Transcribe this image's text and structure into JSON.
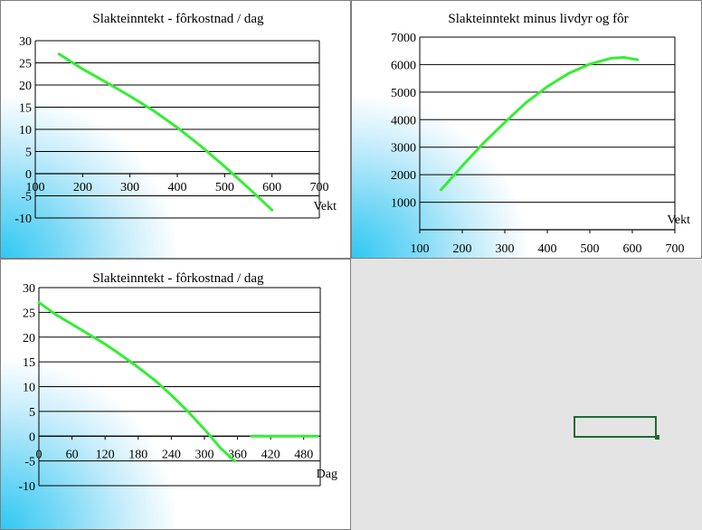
{
  "colors": {
    "line": "#33ee33",
    "axis": "#000000",
    "grid": "#000000",
    "background_gradient": "#2fc8f2",
    "sheet_background": "#e4e4e4",
    "selection": "#1e6b32"
  },
  "chart_data": [
    {
      "type": "line",
      "title": "Slakteinntekt - fôrkostnad / dag",
      "xlabel": "Vekt",
      "ylabel": "",
      "xlim": [
        100,
        700
      ],
      "ylim": [
        -10,
        30
      ],
      "xticks": [
        100,
        200,
        300,
        400,
        500,
        600,
        700
      ],
      "xtick_labels": [
        "100",
        "200",
        "300",
        "400",
        "500",
        "600",
        "700"
      ],
      "yticks": [
        -10,
        -5,
        0,
        5,
        10,
        15,
        20,
        25,
        30
      ],
      "ytick_labels": [
        "-10",
        "-5",
        "0",
        "5",
        "10",
        "15",
        "20",
        "25",
        "30"
      ],
      "grid": true,
      "legend": "none",
      "series": [
        {
          "x": [
            150,
            200,
            250,
            300,
            350,
            400,
            450,
            500,
            550,
            600
          ],
          "y": [
            27,
            23.6,
            20.6,
            17.5,
            14.2,
            10.4,
            6.2,
            1.6,
            -3.2,
            -8.2
          ]
        }
      ]
    },
    {
      "type": "line",
      "title": "Slakteinntekt minus livdyr og fôr",
      "xlabel": "Vekt",
      "ylabel": "",
      "xlim": [
        100,
        700
      ],
      "ylim": [
        0,
        7000
      ],
      "xticks": [
        100,
        200,
        300,
        400,
        500,
        600,
        700
      ],
      "xtick_labels": [
        "100",
        "200",
        "300",
        "400",
        "500",
        "600",
        "700"
      ],
      "yticks": [
        0,
        1000,
        2000,
        3000,
        4000,
        5000,
        6000,
        7000
      ],
      "ytick_labels": [
        "0",
        "1000",
        "2000",
        "3000",
        "4000",
        "5000",
        "6000",
        "7000"
      ],
      "grid": true,
      "legend": "none",
      "series": [
        {
          "x": [
            150,
            200,
            250,
            300,
            350,
            400,
            450,
            500,
            550,
            580,
            612
          ],
          "y": [
            1450,
            2320,
            3150,
            3900,
            4620,
            5200,
            5680,
            6020,
            6230,
            6260,
            6180
          ]
        }
      ]
    },
    {
      "type": "line",
      "title": "Slakteinntekt - fôrkostnad / dag",
      "xlabel": "Dag",
      "ylabel": "",
      "xlim": [
        0,
        510
      ],
      "ylim": [
        -10,
        30
      ],
      "xticks": [
        0,
        60,
        120,
        180,
        240,
        300,
        360,
        420,
        480
      ],
      "xtick_labels": [
        "0",
        "60",
        "120",
        "180",
        "240",
        "300",
        "360",
        "420",
        "480"
      ],
      "yticks": [
        -10,
        -5,
        0,
        5,
        10,
        15,
        20,
        25,
        30
      ],
      "ytick_labels": [
        "-10",
        "-5",
        "0",
        "5",
        "10",
        "15",
        "20",
        "25",
        "30"
      ],
      "grid": true,
      "legend": "none",
      "series": [
        {
          "x": [
            0,
            30,
            60,
            90,
            120,
            150,
            180,
            210,
            240,
            270,
            300,
            330,
            355
          ],
          "y": [
            27,
            24.6,
            22.6,
            20.6,
            18.6,
            16.3,
            13.9,
            11.3,
            8.3,
            5.0,
            1.4,
            -2.5,
            -5.0
          ]
        },
        {
          "x": [
            385,
            505
          ],
          "y": [
            0,
            0
          ]
        }
      ]
    }
  ]
}
